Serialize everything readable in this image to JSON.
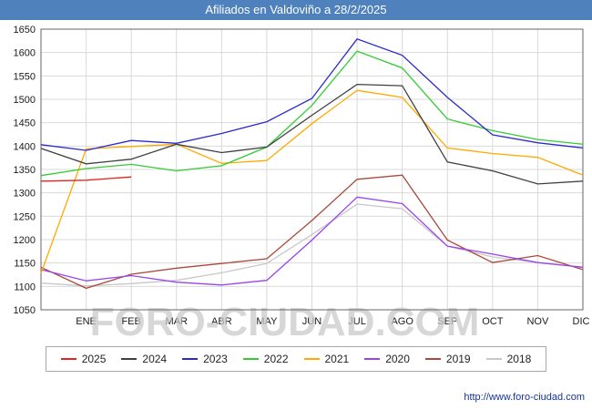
{
  "header": {
    "title": "Afiliados en Valdoviño a 28/2/2025"
  },
  "watermark": "FORO-CIUDAD.COM",
  "footer": {
    "url": "http://www.foro-ciudad.com"
  },
  "colors": {
    "title_bar": "#4f81bd",
    "grid": "#d9d9d9",
    "plot_border": "#666666",
    "axis_text": "#1a1a1a",
    "watermark": "#c9c9c9",
    "url_text": "#16339b"
  },
  "chart_data": {
    "type": "line",
    "title": "Afiliados en Valdoviño a 28/2/2025",
    "xlabel": "",
    "ylabel": "",
    "ylim": [
      1050,
      1650
    ],
    "y_tick_step": 50,
    "grid": true,
    "legend_position": "bottom",
    "x_note": "first value of each series is plotted at the left axis (December of previous year), then one point per month",
    "categories": [
      "ENE",
      "FEB",
      "MAR",
      "ABR",
      "MAY",
      "JUN",
      "JUL",
      "AGO",
      "SEP",
      "OCT",
      "NOV",
      "DIC"
    ],
    "series": [
      {
        "name": "2025",
        "color": "#e62222",
        "values": [
          1325,
          1327,
          1334
        ]
      },
      {
        "name": "2024",
        "color": "#404040",
        "values": [
          1395,
          1362,
          1372,
          1404,
          1386,
          1398,
          1466,
          1532,
          1529,
          1366,
          1347,
          1319,
          1325
        ]
      },
      {
        "name": "2023",
        "color": "#2b2bcc",
        "values": [
          1403,
          1391,
          1412,
          1406,
          1427,
          1452,
          1502,
          1629,
          1594,
          1504,
          1424,
          1407,
          1396
        ]
      },
      {
        "name": "2022",
        "color": "#33cc33",
        "values": [
          1337,
          1352,
          1361,
          1347,
          1358,
          1398,
          1487,
          1603,
          1567,
          1458,
          1433,
          1414,
          1404
        ]
      },
      {
        "name": "2021",
        "color": "#ffaa00",
        "values": [
          1128,
          1394,
          1399,
          1404,
          1363,
          1369,
          1448,
          1519,
          1504,
          1396,
          1384,
          1376,
          1338
        ]
      },
      {
        "name": "2020",
        "color": "#9944ee",
        "values": [
          1136,
          1112,
          1123,
          1109,
          1103,
          1113,
          1199,
          1291,
          1277,
          1186,
          1169,
          1151,
          1141
        ]
      },
      {
        "name": "2019",
        "color": "#aa4a3a",
        "values": [
          1141,
          1096,
          1126,
          1139,
          1149,
          1159,
          1241,
          1329,
          1338,
          1199,
          1151,
          1166,
          1136
        ]
      },
      {
        "name": "2018",
        "color": "#c8c8c8",
        "values": [
          1107,
          1101,
          1106,
          1113,
          1129,
          1149,
          1211,
          1276,
          1266,
          1186,
          1163,
          1151,
          1141
        ]
      }
    ],
    "legend_order": [
      "2025",
      "2024",
      "2023",
      "2022",
      "2021",
      "2020",
      "2019",
      "2018"
    ]
  }
}
